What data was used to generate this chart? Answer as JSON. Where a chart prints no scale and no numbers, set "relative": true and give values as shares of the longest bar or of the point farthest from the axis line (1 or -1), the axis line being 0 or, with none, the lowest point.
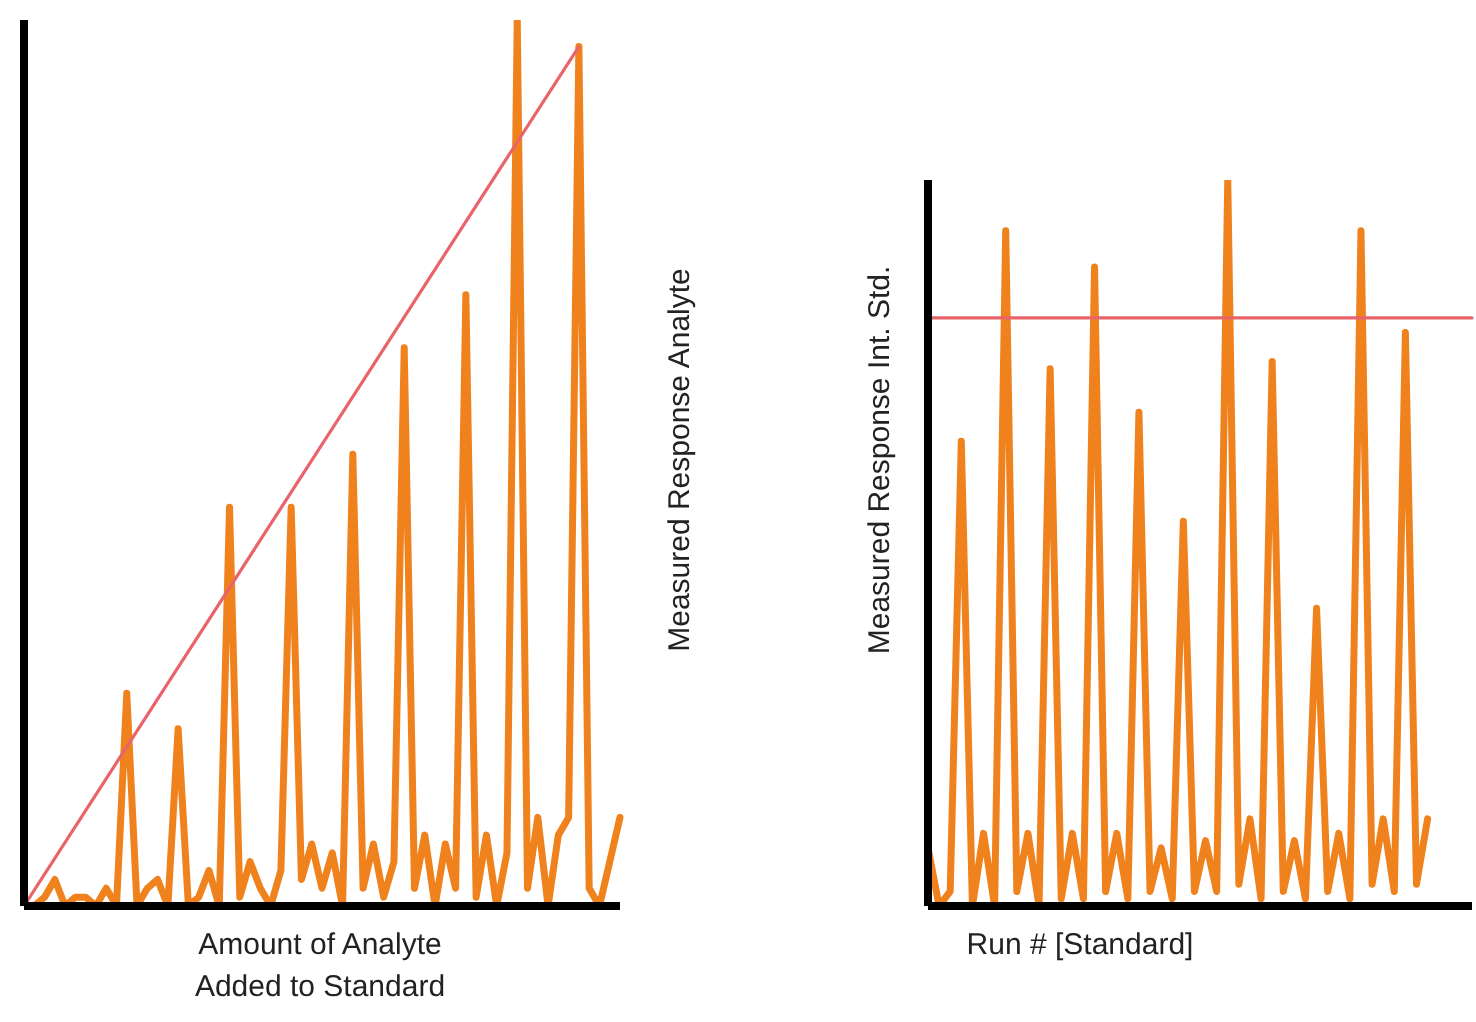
{
  "chart_data": [
    {
      "type": "line",
      "relative": true,
      "xlabel": "Amount of Analyte\nAdded to Standard",
      "ylabel": "Measured Response Analyte",
      "marker": "none",
      "line_style": "solid",
      "categories": [
        null,
        null,
        null,
        null,
        null,
        null,
        null,
        null,
        null,
        null,
        null,
        null,
        null,
        null,
        null,
        null,
        null,
        null,
        null,
        null,
        null,
        null,
        null,
        null,
        null,
        null,
        null,
        null,
        null,
        null,
        null,
        null,
        null,
        null,
        null,
        null,
        null,
        null,
        null,
        null,
        null,
        null,
        null,
        null,
        null,
        null,
        null,
        null,
        null,
        null,
        null,
        null,
        null,
        null,
        null,
        null,
        null,
        null,
        null
      ],
      "series": [
        {
          "color": "#f0821e",
          "values": [
            0,
            0,
            0.01,
            0.03,
            0,
            0.01,
            0.01,
            0,
            0.02,
            0,
            0.24,
            0,
            0.02,
            0.03,
            0,
            0.2,
            0,
            0.01,
            0.04,
            0,
            0.45,
            0.01,
            0.05,
            0.02,
            0,
            0.04,
            0.45,
            0.03,
            0.07,
            0.02,
            0.06,
            0,
            0.51,
            0.02,
            0.07,
            0.01,
            0.05,
            0.63,
            0.02,
            0.08,
            0,
            0.07,
            0.02,
            0.69,
            0.01,
            0.08,
            0,
            0.06,
            1,
            0.02,
            0.1,
            0,
            0.08,
            0.1,
            0.97,
            0.02,
            0,
            0.05,
            0.1
          ]
        },
        {
          "color": "#e8646a",
          "values": [
            0,
            null,
            null,
            null,
            null,
            null,
            null,
            null,
            null,
            null,
            null,
            null,
            null,
            null,
            null,
            null,
            null,
            null,
            null,
            null,
            null,
            null,
            null,
            null,
            null,
            null,
            null,
            null,
            null,
            null,
            null,
            null,
            null,
            null,
            null,
            null,
            null,
            null,
            null,
            null,
            null,
            null,
            null,
            null,
            null,
            null,
            null,
            null,
            null,
            null,
            null,
            null,
            null,
            null,
            0.97,
            null,
            null,
            null,
            null
          ]
        }
      ]
    },
    {
      "type": "line",
      "relative": true,
      "xlabel": "Run # [Standard]",
      "ylabel": "Measured Response Int. Std.",
      "marker": "none",
      "line_style": "solid",
      "categories": [
        null,
        null,
        null,
        null,
        null,
        null,
        null,
        null,
        null,
        null,
        null,
        null,
        null,
        null,
        null,
        null,
        null,
        null,
        null,
        null,
        null,
        null,
        null,
        null,
        null,
        null,
        null,
        null,
        null,
        null,
        null,
        null,
        null,
        null,
        null,
        null,
        null,
        null,
        null,
        null,
        null,
        null,
        null,
        null,
        null,
        null,
        null,
        null,
        null,
        null
      ],
      "series": [
        {
          "color": "#f0821e",
          "values": [
            0.08,
            0,
            0.02,
            0.64,
            0,
            0.1,
            0,
            0.93,
            0.02,
            0.1,
            0,
            0.74,
            0.01,
            0.1,
            0.01,
            0.88,
            0.02,
            0.1,
            0.01,
            0.68,
            0.02,
            0.08,
            0.01,
            0.53,
            0.02,
            0.09,
            0.02,
            1,
            0.03,
            0.12,
            0.01,
            0.75,
            0.02,
            0.09,
            0.01,
            0.41,
            0.02,
            0.1,
            0.01,
            0.93,
            0.03,
            0.12,
            0.02,
            0.79,
            0.03,
            0.12,
            null,
            null,
            null,
            null
          ]
        },
        {
          "color": "#e8646a",
          "values": [
            0.81,
            0.81,
            0.81,
            0.81,
            0.81,
            0.81,
            0.81,
            0.81,
            0.81,
            0.81,
            0.81,
            0.81,
            0.81,
            0.81,
            0.81,
            0.81,
            0.81,
            0.81,
            0.81,
            0.81,
            0.81,
            0.81,
            0.81,
            0.81,
            0.81,
            0.81,
            0.81,
            0.81,
            0.81,
            0.81,
            0.81,
            0.81,
            0.81,
            0.81,
            0.81,
            0.81,
            0.81,
            0.81,
            0.81,
            0.81,
            0.81,
            0.81,
            0.81,
            0.81,
            0.81,
            0.81,
            0.81,
            0.81,
            0.81,
            0.81
          ]
        }
      ]
    }
  ]
}
